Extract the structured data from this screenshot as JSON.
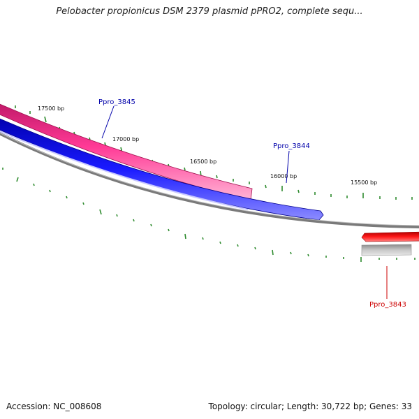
{
  "title": "Pelobacter propionicus DSM 2379 plasmid pPRO2, complete sequ...",
  "footer": {
    "accession": "Accession: NC_008608",
    "summary": "Topology: circular; Length: 30,722 bp; Genes: 33"
  },
  "ticks": {
    "labels": [
      "17500 bp",
      "17000 bp",
      "16500 bp",
      "16000 bp",
      "15500 bp"
    ],
    "color": "#2e8b2e"
  },
  "genes": [
    {
      "name": "Ppro_3845",
      "strand": "+",
      "color": "#ff2a8a",
      "label_color": "#0000aa"
    },
    {
      "name": "Ppro_3844",
      "strand": "-",
      "color": "#1515ee",
      "label_color": "#0000aa"
    },
    {
      "name": "Ppro_3843",
      "strand": "-",
      "color": "#ff1111",
      "label_color": "#cc0000"
    }
  ],
  "colors": {
    "backbone": "#7a7a7a",
    "secondary_track": "#b8b8b8"
  }
}
